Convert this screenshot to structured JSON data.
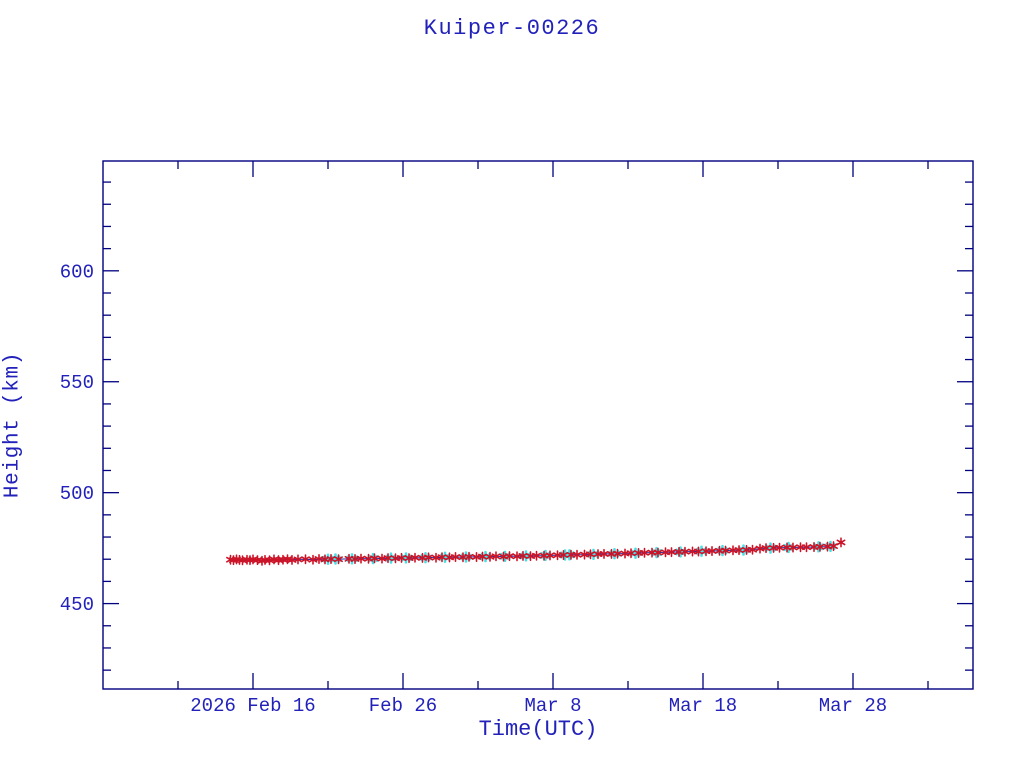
{
  "colors": {
    "frame": "#000080",
    "text": "#2222bb",
    "red_marker": "#cc1428",
    "cyan_marker": "#46e1e6",
    "connect_line": "#2a2a9a",
    "background": "#ffffff"
  },
  "chart_data": {
    "type": "scatter",
    "title": "Kuiper-00226",
    "xlabel": "Time(UTC)",
    "ylabel": "Height (km)",
    "grid": false,
    "legend": "none",
    "x_axis": {
      "unit": "days since 2026 Feb 6 00:00 UTC (left edge of frame)",
      "range": [
        0,
        58
      ],
      "major_tick_days": [
        10,
        20,
        30,
        40,
        50
      ],
      "major_tick_labels": [
        "2026 Feb 16",
        "Feb 26",
        "Mar  8",
        "Mar 18",
        "Mar 28"
      ],
      "minor_tick_step_days": 5
    },
    "y_axis": {
      "unit": "km",
      "range": [
        411.5,
        649.5
      ],
      "major_ticks": [
        450,
        500,
        550,
        600
      ],
      "major_tick_labels": [
        "450",
        "500",
        "550",
        "600"
      ],
      "minor_tick_step": 10
    },
    "series": [
      {
        "name": "predicted-height-cyan",
        "marker": "asterisk-thick",
        "color_key": "cyan_marker",
        "connect": false,
        "points": [
          [
            15.0,
            470.0
          ],
          [
            15.5,
            470.1
          ],
          [
            16.6,
            470.2
          ],
          [
            18.0,
            470.3
          ],
          [
            19.2,
            470.5
          ],
          [
            20.2,
            470.6
          ],
          [
            21.5,
            470.7
          ],
          [
            22.8,
            470.9
          ],
          [
            24.2,
            471.0
          ],
          [
            25.5,
            471.2
          ],
          [
            26.8,
            471.3
          ],
          [
            28.2,
            471.5
          ],
          [
            29.5,
            471.7
          ],
          [
            30.8,
            471.9
          ],
          [
            31.1,
            472.0
          ],
          [
            32.7,
            472.2
          ],
          [
            34.1,
            472.5
          ],
          [
            35.5,
            472.7
          ],
          [
            36.9,
            473.0
          ],
          [
            38.5,
            473.3
          ],
          [
            39.9,
            473.6
          ],
          [
            41.3,
            473.9
          ],
          [
            42.7,
            474.1
          ],
          [
            44.5,
            475.0
          ],
          [
            45.7,
            475.3
          ],
          [
            47.7,
            475.6
          ],
          [
            48.5,
            475.8
          ]
        ]
      },
      {
        "name": "measured-height-red",
        "marker": "asterisk",
        "color_key": "red_marker",
        "connect": true,
        "points": [
          [
            8.5,
            469.8
          ],
          [
            8.7,
            469.6
          ],
          [
            8.9,
            469.9
          ],
          [
            9.1,
            469.7
          ],
          [
            9.3,
            469.5
          ],
          [
            9.6,
            469.8
          ],
          [
            9.8,
            469.6
          ],
          [
            10.0,
            469.9
          ],
          [
            10.3,
            469.6
          ],
          [
            10.6,
            469.3
          ],
          [
            10.8,
            469.7
          ],
          [
            11.1,
            469.5
          ],
          [
            11.4,
            469.9
          ],
          [
            11.7,
            469.6
          ],
          [
            12.0,
            469.8
          ],
          [
            12.3,
            470.0
          ],
          [
            12.6,
            469.7
          ],
          [
            13.0,
            469.9
          ],
          [
            13.5,
            470.0
          ],
          [
            14.0,
            469.8
          ],
          [
            14.4,
            470.1
          ],
          [
            14.8,
            469.9
          ],
          [
            15.2,
            470.1
          ],
          [
            15.7,
            470.0
          ],
          [
            16.4,
            470.2
          ],
          [
            16.8,
            470.1
          ],
          [
            17.2,
            470.3
          ],
          [
            17.7,
            470.2
          ],
          [
            18.1,
            470.4
          ],
          [
            18.6,
            470.3
          ],
          [
            19.0,
            470.5
          ],
          [
            19.5,
            470.4
          ],
          [
            19.9,
            470.6
          ],
          [
            20.4,
            470.5
          ],
          [
            20.8,
            470.7
          ],
          [
            21.3,
            470.6
          ],
          [
            21.7,
            470.8
          ],
          [
            22.2,
            470.7
          ],
          [
            22.6,
            470.9
          ],
          [
            23.1,
            470.8
          ],
          [
            23.5,
            471.0
          ],
          [
            24.0,
            470.9
          ],
          [
            24.4,
            471.1
          ],
          [
            24.9,
            471.0
          ],
          [
            25.3,
            471.2
          ],
          [
            25.8,
            471.1
          ],
          [
            26.2,
            471.3
          ],
          [
            26.7,
            471.2
          ],
          [
            27.1,
            471.4
          ],
          [
            27.6,
            471.3
          ],
          [
            28.0,
            471.5
          ],
          [
            28.5,
            471.4
          ],
          [
            28.9,
            471.6
          ],
          [
            29.4,
            471.6
          ],
          [
            29.8,
            471.7
          ],
          [
            30.3,
            471.8
          ],
          [
            30.7,
            471.9
          ],
          [
            31.2,
            472.0
          ],
          [
            31.6,
            472.0
          ],
          [
            32.1,
            472.1
          ],
          [
            32.5,
            472.2
          ],
          [
            33.0,
            472.3
          ],
          [
            33.4,
            472.4
          ],
          [
            33.9,
            472.4
          ],
          [
            34.3,
            472.5
          ],
          [
            34.8,
            472.6
          ],
          [
            35.2,
            472.7
          ],
          [
            35.7,
            472.8
          ],
          [
            36.1,
            472.9
          ],
          [
            36.6,
            473.0
          ],
          [
            37.0,
            473.0
          ],
          [
            37.5,
            473.1
          ],
          [
            37.9,
            473.2
          ],
          [
            38.4,
            473.3
          ],
          [
            38.8,
            473.4
          ],
          [
            39.3,
            473.5
          ],
          [
            39.7,
            473.5
          ],
          [
            40.2,
            473.6
          ],
          [
            40.6,
            473.7
          ],
          [
            41.1,
            473.8
          ],
          [
            41.5,
            473.9
          ],
          [
            42.0,
            474.0
          ],
          [
            42.4,
            474.1
          ],
          [
            42.9,
            474.2
          ],
          [
            43.3,
            474.3
          ],
          [
            43.8,
            474.8
          ],
          [
            44.2,
            475.0
          ],
          [
            44.7,
            475.1
          ],
          [
            45.1,
            475.2
          ],
          [
            45.6,
            475.3
          ],
          [
            46.0,
            475.3
          ],
          [
            46.5,
            475.4
          ],
          [
            46.9,
            475.4
          ],
          [
            47.4,
            475.5
          ],
          [
            47.8,
            475.6
          ],
          [
            48.3,
            475.7
          ],
          [
            48.7,
            475.9
          ],
          [
            49.2,
            477.6
          ]
        ]
      }
    ]
  }
}
